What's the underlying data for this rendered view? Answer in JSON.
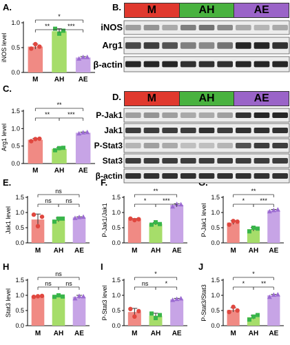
{
  "colors": {
    "M": "#f08a84",
    "AH": "#a6dd6a",
    "AE": "#c7a4e6",
    "M_dot": "#e0473f",
    "AH_dot": "#39b54a",
    "AE_dot": "#9b6bd1",
    "blot_M": "#e0392e",
    "blot_AH": "#49b23f",
    "blot_AE": "#9a64c8"
  },
  "blots": {
    "B": {
      "letter": "B.",
      "groups": [
        "M",
        "AH",
        "AE"
      ],
      "rows": [
        "iNOS",
        "Arg1",
        "β-actin"
      ]
    },
    "D": {
      "letter": "D.",
      "groups": [
        "M",
        "AH",
        "AE"
      ],
      "rows": [
        "P-Jak1",
        "Jak1",
        "P-Stat3",
        "Stat3",
        "β-actin"
      ]
    }
  },
  "chart_data": [
    {
      "id": "A",
      "letter": "A.",
      "type": "bar",
      "categories": [
        "M",
        "AH",
        "AE"
      ],
      "values": [
        0.52,
        0.83,
        0.3
      ],
      "points": [
        [
          0.48,
          0.57,
          0.52
        ],
        [
          0.88,
          0.78,
          0.84
        ],
        [
          0.28,
          0.31,
          0.31
        ]
      ],
      "errors": [
        0.05,
        0.05,
        0.02
      ],
      "ylabel": "iNOS level",
      "ylim": [
        0,
        1.0
      ],
      "yticks": [
        "0.0",
        "0.5",
        "1.0"
      ],
      "sig": [
        {
          "from": 0,
          "to": 1,
          "label": "**",
          "level": 1
        },
        {
          "from": 1,
          "to": 2,
          "label": "***",
          "level": 1
        },
        {
          "from": 0,
          "to": 2,
          "label": "*",
          "level": 2
        }
      ]
    },
    {
      "id": "C",
      "letter": "C.",
      "type": "bar",
      "categories": [
        "M",
        "AH",
        "AE"
      ],
      "values": [
        0.68,
        0.42,
        0.88
      ],
      "points": [
        [
          0.64,
          0.7,
          0.71
        ],
        [
          0.38,
          0.44,
          0.45
        ],
        [
          0.86,
          0.89,
          0.9
        ]
      ],
      "errors": [
        0.04,
        0.04,
        0.02
      ],
      "ylabel": "Arg1 level",
      "ylim": [
        0,
        1.5
      ],
      "yticks": [
        "0.0",
        "0.5",
        "1.0",
        "1.5"
      ],
      "sig": [
        {
          "from": 0,
          "to": 1,
          "label": "**",
          "level": 1
        },
        {
          "from": 1,
          "to": 2,
          "label": "***",
          "level": 1
        },
        {
          "from": 0,
          "to": 2,
          "label": "**",
          "level": 2
        }
      ]
    },
    {
      "id": "E",
      "letter": "E.",
      "type": "bar",
      "categories": [
        "M",
        "AH",
        "AE"
      ],
      "values": [
        0.77,
        0.76,
        0.84
      ],
      "points": [
        [
          0.93,
          0.55,
          0.86
        ],
        [
          0.7,
          0.8,
          0.8
        ],
        [
          0.82,
          0.85,
          0.86
        ]
      ],
      "errors": [
        0.18,
        0.06,
        0.02
      ],
      "ylabel": "Jak1 level",
      "ylim": [
        0,
        1.5
      ],
      "yticks": [
        "0.0",
        "0.5",
        "1.0",
        "1.5"
      ],
      "sig": [
        {
          "from": 0,
          "to": 1,
          "label": "ns",
          "level": 1
        },
        {
          "from": 1,
          "to": 2,
          "label": "ns",
          "level": 1
        },
        {
          "from": 0,
          "to": 2,
          "label": "ns",
          "level": 2
        }
      ]
    },
    {
      "id": "F",
      "letter": "F.",
      "type": "bar",
      "categories": [
        "M",
        "AH",
        "AE"
      ],
      "values": [
        0.77,
        0.63,
        1.25
      ],
      "points": [
        [
          0.8,
          0.75,
          0.78
        ],
        [
          0.6,
          0.68,
          0.62
        ],
        [
          1.2,
          1.28,
          1.27
        ]
      ],
      "errors": [
        0.03,
        0.04,
        0.04
      ],
      "ylabel": "P-Jak1/Jak1",
      "ylim": [
        0,
        1.5
      ],
      "yticks": [
        "0.0",
        "0.5",
        "1.0",
        "1.5"
      ],
      "sig": [
        {
          "from": 0,
          "to": 1,
          "label": "*",
          "level": 1
        },
        {
          "from": 1,
          "to": 2,
          "label": "***",
          "level": 1
        },
        {
          "from": 0,
          "to": 2,
          "label": "**",
          "level": 2
        }
      ]
    },
    {
      "id": "G",
      "letter": "G.",
      "type": "bar",
      "categories": [
        "M",
        "AH",
        "AE"
      ],
      "values": [
        0.67,
        0.45,
        1.07
      ],
      "points": [
        [
          0.6,
          0.72,
          0.7
        ],
        [
          0.38,
          0.5,
          0.47
        ],
        [
          1.04,
          1.08,
          1.1
        ]
      ],
      "errors": [
        0.06,
        0.06,
        0.03
      ],
      "ylabel": "P-Jak1 level",
      "ylim": [
        0,
        1.5
      ],
      "yticks": [
        "0.0",
        "0.5",
        "1.0",
        "1.5"
      ],
      "sig": [
        {
          "from": 0,
          "to": 1,
          "label": "*",
          "level": 1
        },
        {
          "from": 1,
          "to": 2,
          "label": "***",
          "level": 1
        },
        {
          "from": 0,
          "to": 2,
          "label": "**",
          "level": 2
        }
      ]
    },
    {
      "id": "H",
      "letter": "H",
      "type": "bar",
      "categories": [
        "M",
        "AH",
        "AE"
      ],
      "values": [
        0.97,
        0.97,
        0.95
      ],
      "points": [
        [
          0.95,
          0.97,
          0.98
        ],
        [
          0.95,
          1.0,
          0.96
        ],
        [
          0.9,
          0.98,
          0.97
        ]
      ],
      "errors": [
        0.01,
        0.03,
        0.05
      ],
      "ylabel": "Stat3 level",
      "ylim": [
        0,
        1.5
      ],
      "yticks": [
        "0.0",
        "0.5",
        "1.0",
        "1.5"
      ],
      "sig": [
        {
          "from": 0,
          "to": 1,
          "label": "ns",
          "level": 1
        },
        {
          "from": 1,
          "to": 2,
          "label": "ns",
          "level": 1
        },
        {
          "from": 0,
          "to": 2,
          "label": "ns",
          "level": 2
        }
      ]
    },
    {
      "id": "I",
      "letter": "I",
      "type": "bar",
      "categories": [
        "M",
        "AH",
        "AE"
      ],
      "values": [
        0.45,
        0.33,
        0.87
      ],
      "points": [
        [
          0.55,
          0.3,
          0.48
        ],
        [
          0.4,
          0.25,
          0.35
        ],
        [
          0.85,
          0.88,
          0.9
        ]
      ],
      "errors": [
        0.12,
        0.08,
        0.03
      ],
      "ylabel": "P-Stat3 level",
      "ylim": [
        0,
        1.5
      ],
      "yticks": [
        "0.0",
        "0.5",
        "1.0",
        "1.5"
      ],
      "sig": [
        {
          "from": 0,
          "to": 1,
          "label": "ns",
          "level": 1
        },
        {
          "from": 1,
          "to": 2,
          "label": "*",
          "level": 1
        },
        {
          "from": 0,
          "to": 2,
          "label": "*",
          "level": 2
        }
      ]
    },
    {
      "id": "J",
      "letter": "J",
      "type": "bar",
      "categories": [
        "M",
        "AH",
        "AE"
      ],
      "values": [
        0.52,
        0.28,
        1.0
      ],
      "points": [
        [
          0.45,
          0.62,
          0.5
        ],
        [
          0.2,
          0.3,
          0.35
        ],
        [
          0.95,
          1.02,
          1.03
        ]
      ],
      "errors": [
        0.07,
        0.06,
        0.03
      ],
      "ylabel": "P-Stat3/Stat3",
      "ylim": [
        0,
        1.5
      ],
      "yticks": [
        "0.0",
        "0.5",
        "1.0",
        "1.5"
      ],
      "sig": [
        {
          "from": 0,
          "to": 1,
          "label": "*",
          "level": 1
        },
        {
          "from": 1,
          "to": 2,
          "label": "**",
          "level": 1
        },
        {
          "from": 0,
          "to": 2,
          "label": "*",
          "level": 2
        }
      ]
    }
  ]
}
